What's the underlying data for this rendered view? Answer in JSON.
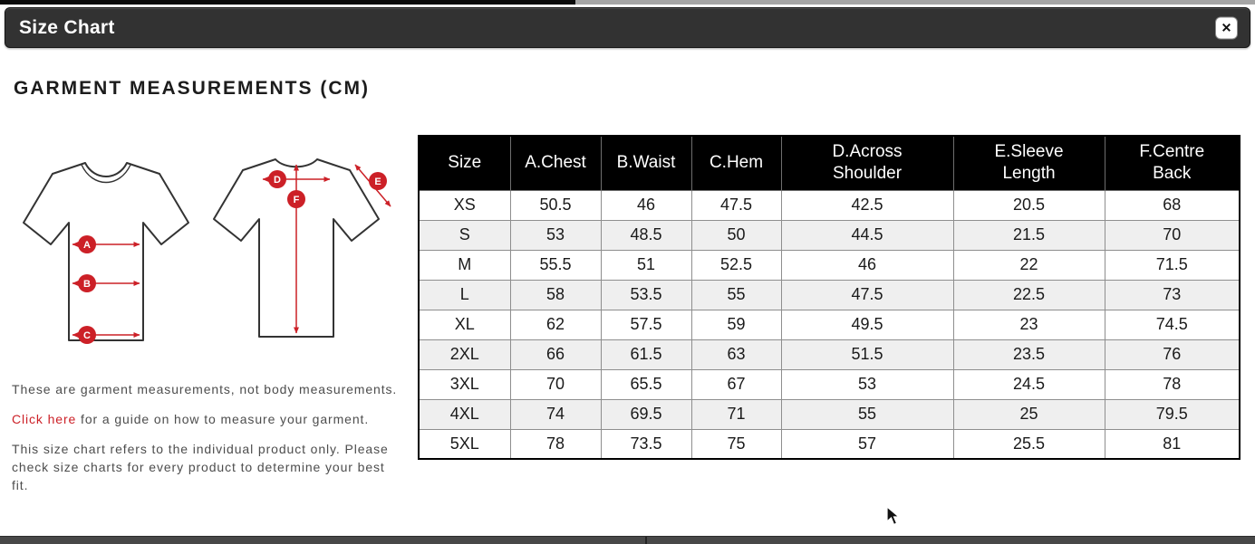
{
  "modal": {
    "title": "Size Chart",
    "close_glyph": "✕"
  },
  "heading": "GARMENT MEASUREMENTS (CM)",
  "diagram": {
    "front_markers": [
      "A",
      "B",
      "C"
    ],
    "back_markers": [
      "D",
      "E",
      "F"
    ],
    "marker_color": "#cc2027"
  },
  "notes": {
    "note1": "These are garment measurements, not body measurements.",
    "link_text": "Click here",
    "note2_rest": " for a guide on how to measure your garment.",
    "note3": "This size chart refers to the individual product only. Please check size charts for every product to determine your best fit."
  },
  "chart_data": {
    "type": "table",
    "title": "Garment Measurements (cm)",
    "columns": [
      "Size",
      "A.Chest",
      "B.Waist",
      "C.Hem",
      "D.Across Shoulder",
      "E.Sleeve Length",
      "F.Centre Back"
    ],
    "rows": [
      [
        "XS",
        "50.5",
        "46",
        "47.5",
        "42.5",
        "20.5",
        "68"
      ],
      [
        "S",
        "53",
        "48.5",
        "50",
        "44.5",
        "21.5",
        "70"
      ],
      [
        "M",
        "55.5",
        "51",
        "52.5",
        "46",
        "22",
        "71.5"
      ],
      [
        "L",
        "58",
        "53.5",
        "55",
        "47.5",
        "22.5",
        "73"
      ],
      [
        "XL",
        "62",
        "57.5",
        "59",
        "49.5",
        "23",
        "74.5"
      ],
      [
        "2XL",
        "66",
        "61.5",
        "63",
        "51.5",
        "23.5",
        "76"
      ],
      [
        "3XL",
        "70",
        "65.5",
        "67",
        "53",
        "24.5",
        "78"
      ],
      [
        "4XL",
        "74",
        "69.5",
        "71",
        "55",
        "25",
        "79.5"
      ],
      [
        "5XL",
        "78",
        "73.5",
        "75",
        "57",
        "25.5",
        "81"
      ]
    ]
  },
  "colors": {
    "accent_red": "#cc2027",
    "modal_header_bg": "#323232",
    "table_header_bg": "#000000",
    "row_alt_bg": "#efefef",
    "bottom_bar": "#484848"
  }
}
